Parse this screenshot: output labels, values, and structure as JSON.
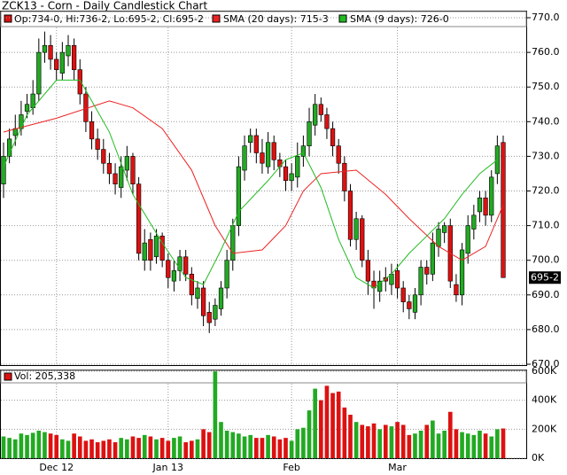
{
  "chart_data": {
    "type": "candlestick",
    "title": "ZCK13 - Corn - Daily Candlestick Chart",
    "ohlc_label": "Op:734-0, Hi:736-2, Lo:695-2, Cl:695-2",
    "last_price_label": "695-2",
    "categories": [
      null,
      null,
      null,
      null,
      null,
      null,
      null,
      null,
      null,
      "Dec 12",
      null,
      null,
      null,
      null,
      null,
      null,
      null,
      null,
      null,
      null,
      null,
      null,
      null,
      null,
      null,
      null,
      null,
      null,
      "Jan 13",
      null,
      null,
      null,
      null,
      null,
      null,
      null,
      null,
      null,
      null,
      null,
      null,
      null,
      null,
      null,
      null,
      null,
      null,
      null,
      null,
      "Feb",
      null,
      null,
      null,
      null,
      null,
      null,
      null,
      null,
      null,
      null,
      null,
      null,
      null,
      null,
      null,
      null,
      null,
      "Mar",
      null,
      null,
      null,
      null,
      null,
      null,
      null,
      null,
      null,
      null,
      null,
      null,
      null,
      null,
      null,
      null,
      null,
      null
    ],
    "open": [
      722,
      730,
      736,
      738,
      743,
      744,
      748,
      760,
      762,
      758,
      754,
      759,
      762,
      755,
      748,
      740,
      735,
      732,
      728,
      725,
      721,
      726,
      730,
      722,
      700,
      706,
      701,
      707,
      700,
      694,
      697,
      701,
      696,
      689,
      692,
      685,
      683,
      686,
      692,
      700,
      710,
      726,
      734,
      736,
      731,
      727,
      734,
      729,
      727,
      723,
      724,
      730,
      733,
      739,
      745,
      742,
      738,
      733,
      728,
      720,
      706,
      712,
      700,
      694,
      691,
      695,
      693,
      697,
      692,
      688,
      685,
      690,
      698,
      696,
      704,
      708,
      710,
      693,
      690,
      702,
      709,
      714,
      718,
      713,
      725,
      734
    ],
    "high": [
      734,
      738,
      742,
      746,
      748,
      752,
      764,
      766,
      765,
      760,
      763,
      765,
      764,
      758,
      750,
      743,
      738,
      735,
      731,
      728,
      730,
      733,
      731,
      724,
      709,
      708,
      709,
      708,
      702,
      700,
      703,
      703,
      698,
      694,
      694,
      688,
      689,
      694,
      703,
      712,
      730,
      736,
      738,
      738,
      735,
      737,
      736,
      731,
      729,
      728,
      734,
      736,
      744,
      748,
      747,
      744,
      740,
      735,
      730,
      722,
      714,
      713,
      703,
      697,
      697,
      698,
      699,
      699,
      694,
      690,
      692,
      700,
      700,
      708,
      711,
      711,
      712,
      696,
      705,
      713,
      716,
      720,
      720,
      726,
      736,
      736
    ],
    "low": [
      718,
      728,
      733,
      736,
      741,
      742,
      746,
      757,
      755,
      752,
      752,
      756,
      752,
      745,
      737,
      732,
      729,
      725,
      722,
      719,
      718,
      723,
      719,
      700,
      697,
      697,
      699,
      698,
      692,
      691,
      694,
      694,
      687,
      686,
      681,
      679,
      681,
      684,
      689,
      697,
      707,
      723,
      731,
      728,
      725,
      725,
      726,
      724,
      720,
      720,
      721,
      727,
      730,
      736,
      740,
      735,
      730,
      725,
      717,
      704,
      703,
      698,
      690,
      686,
      688,
      691,
      690,
      689,
      685,
      683,
      683,
      687,
      693,
      694,
      701,
      705,
      692,
      688,
      687,
      699,
      706,
      711,
      710,
      711,
      722,
      695
    ],
    "close": [
      730,
      735,
      738,
      742,
      745,
      748,
      760,
      762,
      758,
      755,
      760,
      762,
      755,
      748,
      740,
      735,
      732,
      728,
      725,
      722,
      727,
      730,
      722,
      702,
      705,
      700,
      707,
      700,
      695,
      697,
      701,
      696,
      690,
      692,
      684,
      682,
      687,
      692,
      700,
      710,
      727,
      733,
      736,
      731,
      728,
      734,
      729,
      727,
      723,
      725,
      730,
      733,
      740,
      745,
      742,
      738,
      733,
      728,
      720,
      706,
      712,
      700,
      694,
      692,
      694,
      694,
      696,
      692,
      688,
      686,
      690,
      698,
      696,
      705,
      709,
      710,
      694,
      690,
      703,
      710,
      713,
      718,
      713,
      724,
      733,
      695
    ],
    "up_color": "#22aa22",
    "down_color": "#dd1111",
    "ylim": [
      670,
      770
    ],
    "yticks": [
      {
        "value": 670,
        "label": "670.0"
      },
      {
        "value": 680,
        "label": "680.0"
      },
      {
        "value": 690,
        "label": "690.0"
      },
      {
        "value": 700,
        "label": "700.0"
      },
      {
        "value": 710,
        "label": "710.0"
      },
      {
        "value": 720,
        "label": "720.0"
      },
      {
        "value": 730,
        "label": "730.0"
      },
      {
        "value": 740,
        "label": "740.0"
      },
      {
        "value": 750,
        "label": "750.0"
      },
      {
        "value": 760,
        "label": "760.0"
      },
      {
        "value": 770,
        "label": "770.0"
      }
    ],
    "series": [
      {
        "name": "SMA (20 days): 715-3",
        "color": "#ee2222",
        "x": [
          0,
          9,
          18,
          22,
          27,
          32,
          36,
          39,
          44,
          48,
          51,
          54,
          60,
          65,
          69,
          74,
          78,
          82,
          85
        ],
        "values": [
          737,
          741,
          746,
          744,
          738,
          726,
          710,
          702,
          703,
          710,
          720,
          725,
          726,
          719,
          712,
          704,
          700,
          704,
          716
        ]
      },
      {
        "name": "SMA (9 days): 726-0",
        "color": "#22bb22",
        "x": [
          0,
          4,
          9,
          13,
          18,
          22,
          27,
          31,
          34,
          37,
          40,
          45,
          48,
          51,
          54,
          57,
          60,
          63,
          66,
          69,
          72,
          75,
          78,
          81,
          84
        ],
        "values": [
          727,
          742,
          752,
          752,
          737,
          719,
          705,
          695,
          693,
          703,
          714,
          723,
          729,
          731,
          721,
          706,
          695,
          692,
          696,
          702,
          707,
          712,
          719,
          725,
          729
        ]
      }
    ],
    "volume": {
      "label": "Vol: 205,338",
      "values": [
        150,
        140,
        130,
        170,
        160,
        175,
        190,
        180,
        170,
        160,
        130,
        120,
        170,
        150,
        120,
        130,
        110,
        120,
        130,
        110,
        140,
        130,
        150,
        140,
        160,
        150,
        130,
        140,
        120,
        140,
        150,
        110,
        120,
        130,
        200,
        180,
        600,
        250,
        190,
        180,
        170,
        150,
        160,
        140,
        140,
        160,
        150,
        130,
        140,
        120,
        200,
        210,
        330,
        480,
        400,
        500,
        450,
        460,
        350,
        300,
        250,
        230,
        220,
        240,
        200,
        230,
        220,
        250,
        230,
        160,
        170,
        190,
        230,
        260,
        170,
        190,
        320,
        200,
        180,
        170,
        160,
        190,
        170,
        150,
        200,
        205
      ],
      "ylim": [
        0,
        600
      ],
      "yticks": [
        {
          "value": 0,
          "label": "0K"
        },
        {
          "value": 200,
          "label": "200K"
        },
        {
          "value": 400,
          "label": "400K"
        },
        {
          "value": 600,
          "label": "600K"
        }
      ]
    }
  }
}
